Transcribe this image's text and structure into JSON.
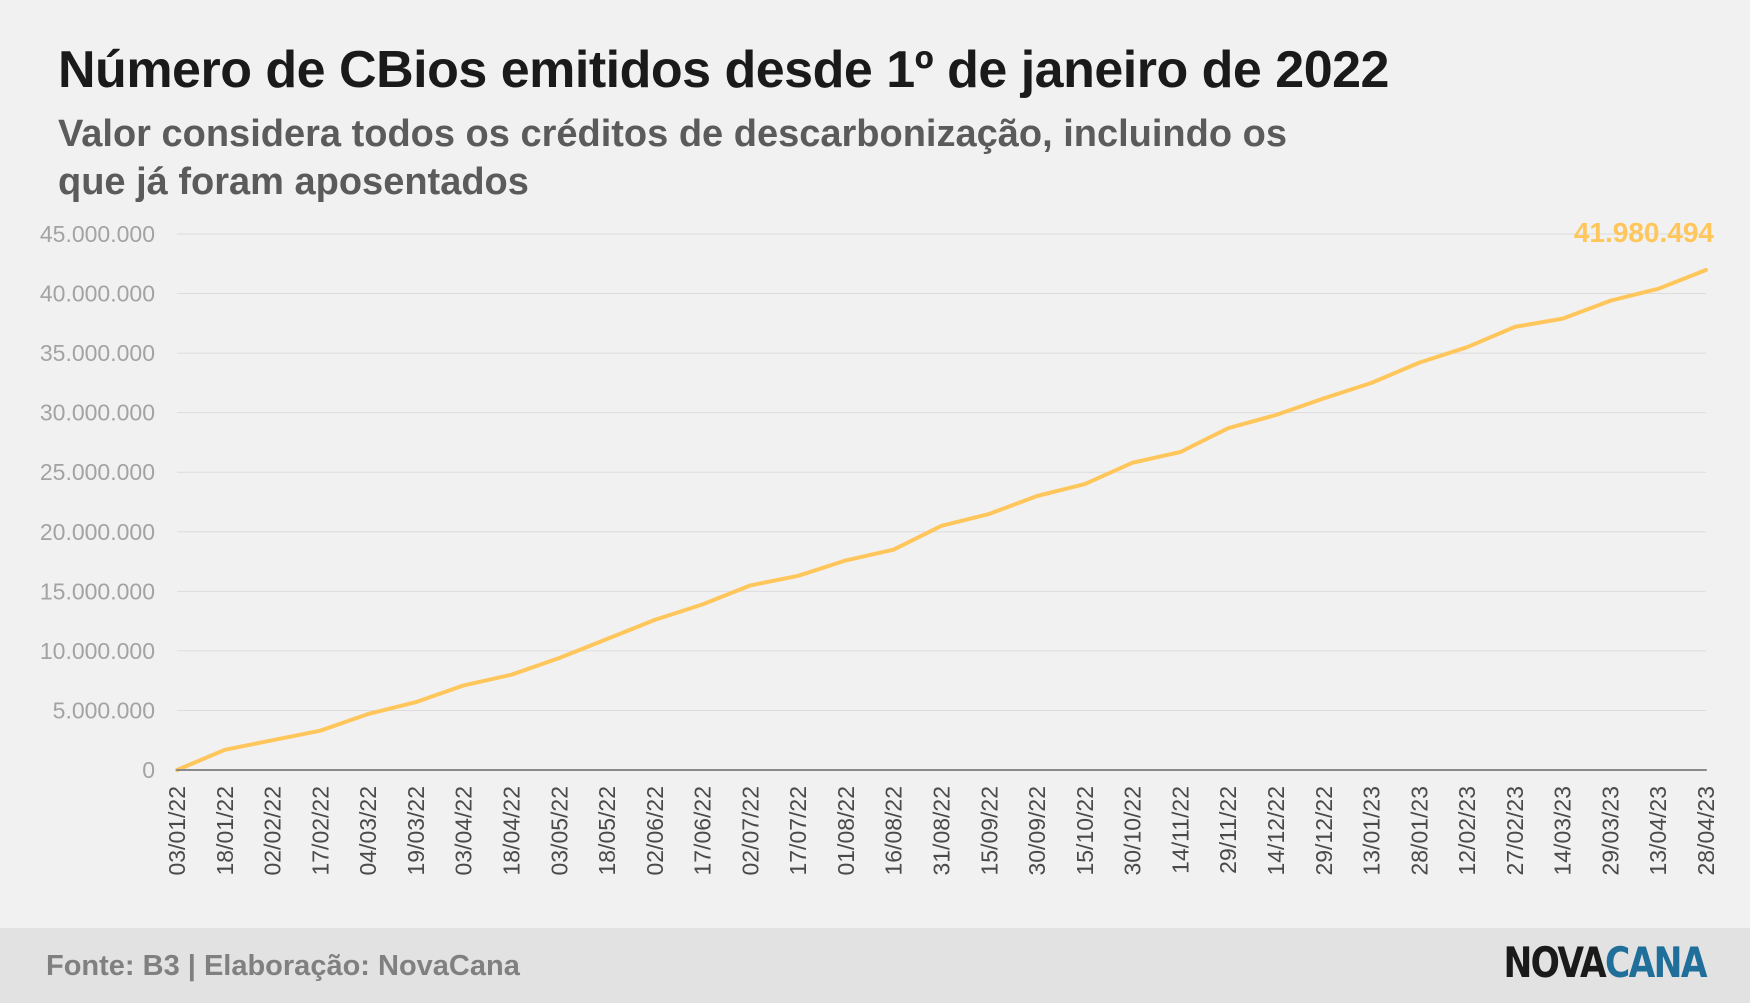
{
  "header": {
    "title": "Número de CBios emitidos desde 1º de janeiro de 2022",
    "subtitle": "Valor considera todos os créditos de descarbonização, incluindo os que já foram aposentados"
  },
  "footer": {
    "source": "Fonte: B3 | Elaboração: NovaCana",
    "logo_part1": "NOVA",
    "logo_part2": "CANA"
  },
  "colors": {
    "series": "#ffc65c",
    "secondary": "#8a8a8a",
    "grid": "#dcdcdc",
    "tick": "#a3a3a3"
  },
  "chart_data": {
    "type": "line",
    "title": "Número de CBios emitidos desde 1º de janeiro de 2022",
    "subtitle": "Valor considera todos os créditos de descarbonização, incluindo os que já foram aposentados",
    "xlabel": "",
    "ylabel": "",
    "ylim": [
      0,
      45000000
    ],
    "yticks": [
      0,
      5000000,
      10000000,
      15000000,
      20000000,
      25000000,
      30000000,
      35000000,
      40000000,
      45000000
    ],
    "ytick_labels": [
      "0",
      "5.000.000",
      "10.000.000",
      "15.000.000",
      "20.000.000",
      "25.000.000",
      "30.000.000",
      "35.000.000",
      "40.000.000",
      "45.000.000"
    ],
    "xtick_labels": [
      "03/01/22",
      "18/01/22",
      "02/02/22",
      "17/02/22",
      "04/03/22",
      "19/03/22",
      "03/04/22",
      "18/04/22",
      "03/05/22",
      "18/05/22",
      "02/06/22",
      "17/06/22",
      "02/07/22",
      "17/07/22",
      "01/08/22",
      "16/08/22",
      "31/08/22",
      "15/09/22",
      "30/09/22",
      "15/10/22",
      "30/10/22",
      "14/11/22",
      "29/11/22",
      "14/12/22",
      "29/12/22",
      "13/01/23",
      "28/01/23",
      "12/02/23",
      "27/02/23",
      "14/03/23",
      "29/03/23",
      "13/04/23",
      "28/04/23"
    ],
    "grid": true,
    "legend": "none",
    "series": [
      {
        "values": [
          0,
          1700000,
          2500000,
          3300000,
          4700000,
          5700000,
          7100000,
          8000000,
          9400000,
          11000000,
          12600000,
          13900000,
          15500000,
          16300000,
          17600000,
          18500000,
          20500000,
          21500000,
          23000000,
          24000000,
          25800000,
          26700000,
          28700000,
          29800000,
          31200000,
          32500000,
          34200000,
          35500000,
          37200000,
          37900000,
          39400000,
          40400000,
          41980494
        ],
        "end_label": "41.980.494"
      },
      {
        "values": [
          0,
          0,
          0,
          0,
          0,
          0,
          0,
          0,
          0,
          0,
          0,
          0,
          0,
          0,
          0,
          0,
          0,
          0,
          0,
          0,
          0,
          0,
          0,
          0,
          0,
          0,
          0,
          0,
          0,
          0,
          0,
          0,
          0
        ]
      }
    ]
  }
}
